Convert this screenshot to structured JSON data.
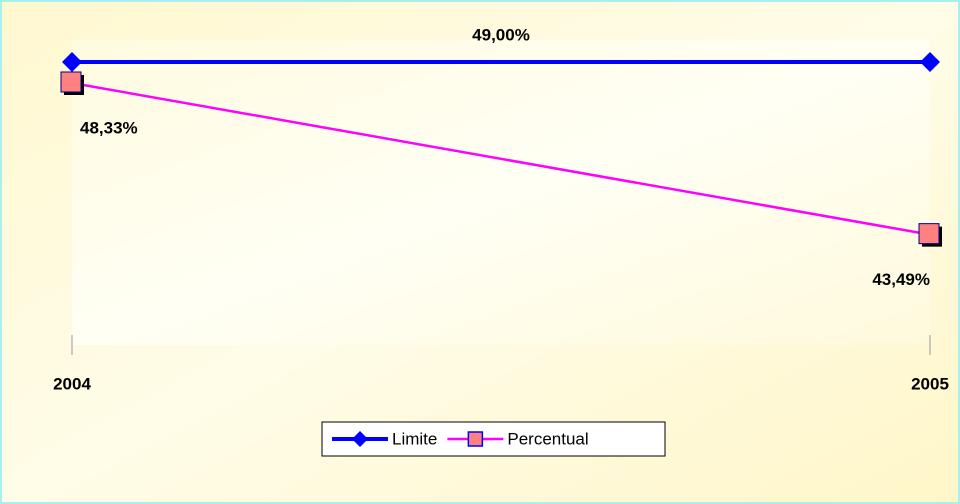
{
  "chart_data": {
    "type": "line",
    "categories": [
      "2004",
      "2005"
    ],
    "series": [
      {
        "name": "Limite",
        "color": "#0000ff",
        "values": [
          49,
          49
        ],
        "value_labels": [
          "49,00%",
          null
        ]
      },
      {
        "name": "Percentual",
        "color": "#ff00ff",
        "values": [
          48.33,
          43.49
        ],
        "value_labels": [
          "48,33%",
          "43,49%"
        ]
      }
    ],
    "ylim": [
      40,
      49
    ]
  }
}
